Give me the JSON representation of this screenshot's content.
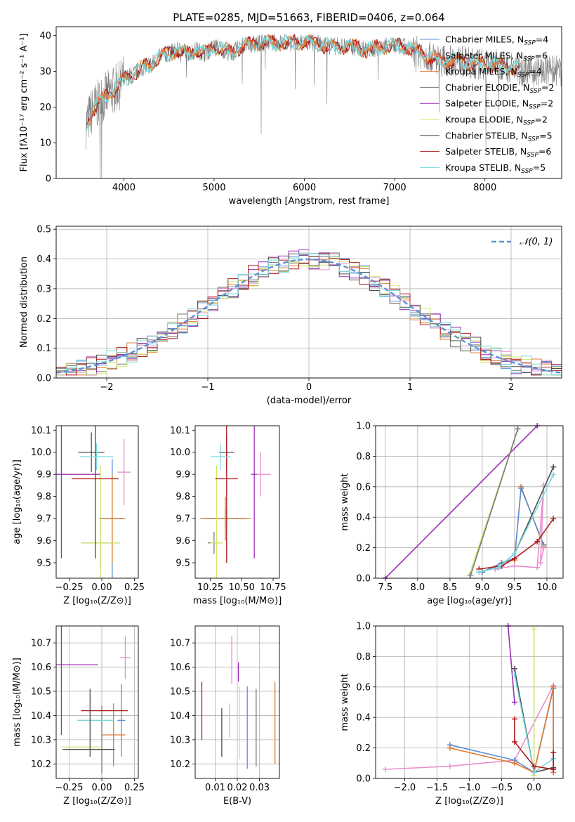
{
  "title": "PLATE=0285, MJD=51663, FIBERID=0406, z=0.064",
  "colors": {
    "grey_spectrum": "#808080",
    "chabrier_miles": "#5b8fd6",
    "salpeter_miles": "#e88fcf",
    "kroupa_miles": "#e07b2e",
    "chabrier_elodie": "#7a7a7a",
    "salpeter_elodie": "#9b2fb8",
    "kroupa_elodie": "#cde86b",
    "chabrier_stelib": "#4d4d4d",
    "salpeter_stelib": "#b01c1c",
    "kroupa_stelib": "#7ad9e0",
    "normal": "#5b8fd6"
  },
  "chart_data": [
    {
      "id": "spectrum",
      "type": "line",
      "xlabel": "wavelength [Angstrom, rest frame]",
      "ylabel": "Flux [fλ10⁻¹⁷ erg cm⁻² s⁻¹ A⁻¹]",
      "xlim": [
        3250,
        8850
      ],
      "ylim": [
        0,
        42.5
      ],
      "xticks": [
        "4000",
        "5000",
        "6000",
        "7000",
        "8000"
      ],
      "yticks": [
        "0",
        "10",
        "20",
        "30",
        "40"
      ],
      "legend_position": "top-right",
      "legend": [
        {
          "label": "Chabrier MILES, N",
          "sub": "SSP",
          "eq": "=4",
          "color_key": "chabrier_miles"
        },
        {
          "label": "Salpeter MILES, N",
          "sub": "SSP",
          "eq": "=6",
          "color_key": "salpeter_miles"
        },
        {
          "label": "Kroupa MILES, N",
          "sub": "SSP",
          "eq": "=4",
          "color_key": "kroupa_miles"
        },
        {
          "label": "Chabrier ELODIE, N",
          "sub": "SSP",
          "eq": "=2",
          "color_key": "chabrier_elodie"
        },
        {
          "label": "Salpeter ELODIE, N",
          "sub": "SSP",
          "eq": "=2",
          "color_key": "salpeter_elodie"
        },
        {
          "label": "Kroupa ELODIE, N",
          "sub": "SSP",
          "eq": "=2",
          "color_key": "kroupa_elodie"
        },
        {
          "label": "Chabrier STELIB, N",
          "sub": "SSP",
          "eq": "=5",
          "color_key": "chabrier_stelib"
        },
        {
          "label": "Salpeter STELIB, N",
          "sub": "SSP",
          "eq": "=6",
          "color_key": "salpeter_stelib"
        },
        {
          "label": "Kroupa STELIB, N",
          "sub": "SSP",
          "eq": "=5",
          "color_key": "kroupa_stelib"
        }
      ],
      "continuum_model": {
        "x": [
          3580,
          3650,
          3750,
          3850,
          3950,
          4000,
          4100,
          4200,
          4300,
          4400,
          4500,
          4600,
          4700,
          4800,
          4900,
          5000,
          5100,
          5200,
          5300,
          5500,
          5700,
          5900,
          6100,
          6300,
          6500,
          6700,
          6900,
          7100,
          7300,
          7500,
          7700,
          7900,
          8100,
          8300,
          8500,
          8700,
          8850
        ],
        "y": [
          15,
          19,
          22,
          24,
          26,
          28,
          29,
          31,
          32,
          34,
          35,
          36,
          35,
          36,
          35,
          37,
          36,
          35,
          37,
          38,
          38,
          38,
          38,
          37,
          37,
          36,
          37,
          37,
          35,
          33,
          33,
          32,
          32,
          31,
          30,
          30,
          30
        ]
      }
    },
    {
      "id": "residuals",
      "type": "histogram",
      "xlabel": "(data-model)/error",
      "ylabel": "Normed distribution",
      "xlim": [
        -2.5,
        2.5
      ],
      "ylim": [
        0,
        0.51
      ],
      "xticks": [
        "−2",
        "−1",
        "0",
        "1",
        "2"
      ],
      "yticks": [
        "0.0",
        "0.1",
        "0.2",
        "0.3",
        "0.4",
        "0.5"
      ],
      "grid": true,
      "legend_position": "top-right",
      "legend_label": "𝒩(0, 1)",
      "bin_width": 0.1
    },
    {
      "id": "age_vs_Z",
      "type": "errorbar",
      "xlabel": "Z [log₁₀(Z/Z⊙)]",
      "ylabel": "age  [log₁₀(age/yr)]",
      "xlim": [
        -0.35,
        0.28
      ],
      "ylim": [
        9.43,
        10.12
      ],
      "xticks": [
        "−0.25",
        "0.00",
        "0.25"
      ],
      "xtick_values": [
        -0.25,
        0,
        0.25
      ],
      "yticks": [
        "9.5",
        "9.6",
        "9.7",
        "9.8",
        "9.9",
        "10.0",
        "10.1"
      ],
      "ytick_values": [
        9.5,
        9.6,
        9.7,
        9.8,
        9.9,
        10.0,
        10.1
      ],
      "points": [
        {
          "s": "chabrier_miles",
          "x": 0.08,
          "xe": 0.08,
          "y": 9.7,
          "ye": 0.27
        },
        {
          "s": "salpeter_miles",
          "x": 0.17,
          "xe": 0.05,
          "y": 9.91,
          "ye": 0.15
        },
        {
          "s": "kroupa_miles",
          "x": 0.08,
          "xe": 0.1,
          "y": 9.7,
          "ye": 0.2
        },
        {
          "s": "chabrier_elodie",
          "x": -0.01,
          "xe": 0.15,
          "y": 9.59,
          "ye": 0.12
        },
        {
          "s": "salpeter_elodie",
          "x": -0.31,
          "xe": 0.3,
          "y": 9.9,
          "ye": 0.38
        },
        {
          "s": "kroupa_elodie",
          "x": -0.01,
          "xe": 0.15,
          "y": 9.59,
          "ye": 0.35
        },
        {
          "s": "chabrier_stelib",
          "x": -0.08,
          "xe": 0.1,
          "y": 10.0,
          "ye": 0.09
        },
        {
          "s": "salpeter_stelib",
          "x": -0.05,
          "xe": 0.18,
          "y": 9.88,
          "ye": 0.36
        },
        {
          "s": "kroupa_stelib",
          "x": -0.04,
          "xe": 0.13,
          "y": 9.98,
          "ye": 0.06
        }
      ]
    },
    {
      "id": "age_vs_mass",
      "type": "errorbar",
      "xlabel": "mass [log₁₀(M/M⊙)]",
      "ylabel": "",
      "xlim": [
        10.13,
        10.8
      ],
      "ylim": [
        9.43,
        10.12
      ],
      "xticks": [
        "10.25",
        "10.50",
        "10.75"
      ],
      "xtick_values": [
        10.25,
        10.5,
        10.75
      ],
      "yticks": [
        "9.5",
        "9.6",
        "9.7",
        "9.8",
        "9.9",
        "10.0",
        "10.1"
      ],
      "ytick_values": [
        9.5,
        9.6,
        9.7,
        9.8,
        9.9,
        10.0,
        10.1
      ],
      "points": [
        {
          "s": "chabrier_miles",
          "x": 10.37,
          "xe": 0.16,
          "y": 9.7,
          "ye": 0.05
        },
        {
          "s": "salpeter_miles",
          "x": 10.65,
          "xe": 0.08,
          "y": 9.9,
          "ye": 0.1
        },
        {
          "s": "kroupa_miles",
          "x": 10.37,
          "xe": 0.2,
          "y": 9.7,
          "ye": 0.1
        },
        {
          "s": "chabrier_elodie",
          "x": 10.28,
          "xe": 0.05,
          "y": 9.59,
          "ye": 0.05
        },
        {
          "s": "salpeter_elodie",
          "x": 10.6,
          "xe": 0.02,
          "y": 9.9,
          "ye": 0.38
        },
        {
          "s": "kroupa_elodie",
          "x": 10.3,
          "xe": 0.05,
          "y": 9.59,
          "ye": 0.35
        },
        {
          "s": "chabrier_stelib",
          "x": 10.38,
          "xe": 0.06,
          "y": 10.0,
          "ye": 0.08
        },
        {
          "s": "salpeter_stelib",
          "x": 10.38,
          "xe": 0.09,
          "y": 9.88,
          "ye": 0.38
        },
        {
          "s": "kroupa_stelib",
          "x": 10.33,
          "xe": 0.08,
          "y": 9.98,
          "ye": 0.06
        }
      ]
    },
    {
      "id": "mass_weight_vs_age",
      "type": "line",
      "xlabel": "age  [log₁₀(age/yr)]",
      "ylabel": "mass weight",
      "xlim": [
        7.35,
        10.25
      ],
      "ylim": [
        0,
        1.0
      ],
      "xticks": [
        "7.5",
        "8.0",
        "8.5",
        "9.0",
        "9.5",
        "10.0"
      ],
      "xtick_values": [
        7.5,
        8.0,
        8.5,
        9.0,
        9.5,
        10.0
      ],
      "yticks": [
        "0.0",
        "0.2",
        "0.4",
        "0.6",
        "0.8",
        "1.0"
      ],
      "ytick_values": [
        0,
        0.2,
        0.4,
        0.6,
        0.8,
        1.0
      ],
      "grid": true,
      "series": [
        {
          "s": "salpeter_elodie",
          "x": [
            7.5,
            9.85
          ],
          "y": [
            0.0,
            1.0
          ]
        },
        {
          "s": "kroupa_elodie",
          "x": [
            8.8,
            9.55
          ],
          "y": [
            0.02,
            0.98
          ]
        },
        {
          "s": "chabrier_elodie",
          "x": [
            8.82,
            9.55
          ],
          "y": [
            0.02,
            0.98
          ]
        },
        {
          "s": "kroupa_miles",
          "x": [
            9.0,
            9.3,
            9.5,
            9.6,
            9.95
          ],
          "y": [
            0.04,
            0.1,
            0.12,
            0.6,
            0.21
          ]
        },
        {
          "s": "chabrier_miles",
          "x": [
            9.0,
            9.3,
            9.5,
            9.6,
            9.95
          ],
          "y": [
            0.04,
            0.1,
            0.13,
            0.59,
            0.22
          ]
        },
        {
          "s": "salpeter_miles",
          "x": [
            9.2,
            9.5,
            9.85,
            9.95,
            9.9,
            9.95
          ],
          "y": [
            0.06,
            0.08,
            0.07,
            0.61,
            0.1,
            0.2
          ]
        },
        {
          "s": "salpeter_stelib",
          "x": [
            8.95,
            9.3,
            9.5,
            9.85,
            10.1
          ],
          "y": [
            0.06,
            0.08,
            0.13,
            0.24,
            0.39
          ]
        },
        {
          "s": "chabrier_stelib",
          "x": [
            8.95,
            9.25,
            9.5,
            10.1
          ],
          "y": [
            0.04,
            0.07,
            0.16,
            0.73
          ]
        },
        {
          "s": "kroupa_stelib",
          "x": [
            8.95,
            9.25,
            9.5,
            10.1
          ],
          "y": [
            0.04,
            0.07,
            0.16,
            0.68
          ]
        }
      ]
    },
    {
      "id": "mass_vs_Z",
      "type": "errorbar",
      "xlabel": "Z [log₁₀(Z/Z⊙)]",
      "ylabel": "mass [log₁₀(M/M⊙)]",
      "xlim": [
        -0.35,
        0.28
      ],
      "ylim": [
        10.14,
        10.77
      ],
      "xticks": [
        "−0.25",
        "0.00",
        "0.25"
      ],
      "xtick_values": [
        -0.25,
        0,
        0.25
      ],
      "yticks": [
        "10.2",
        "10.3",
        "10.4",
        "10.5",
        "10.6",
        "10.7"
      ],
      "ytick_values": [
        10.2,
        10.3,
        10.4,
        10.5,
        10.6,
        10.7
      ],
      "grid": true,
      "points": [
        {
          "s": "chabrier_miles",
          "x": 0.15,
          "xe": 0.03,
          "y": 10.38,
          "ye": 0.15
        },
        {
          "s": "salpeter_miles",
          "x": 0.18,
          "xe": 0.04,
          "y": 10.64,
          "ye": 0.09
        },
        {
          "s": "kroupa_miles",
          "x": 0.09,
          "xe": 0.09,
          "y": 10.32,
          "ye": 0.13
        },
        {
          "s": "chabrier_elodie",
          "x": 0.0,
          "xe": 0.0,
          "y": 10.3,
          "ye": 0.14
        },
        {
          "s": "salpeter_elodie",
          "x": -0.31,
          "xe": 0.28,
          "y": 10.61,
          "ye": 0.29
        },
        {
          "s": "kroupa_elodie",
          "x": -0.16,
          "xe": 0.15,
          "y": 10.27,
          "ye": 0.0
        },
        {
          "s": "chabrier_stelib",
          "x": -0.1,
          "xe": 0.2,
          "y": 10.26,
          "ye": 0.0
        },
        {
          "s": "salpeter_stelib",
          "x": 0.02,
          "xe": 0.18,
          "y": 10.42,
          "ye": 0.0
        },
        {
          "s": "kroupa_stelib",
          "x": -0.05,
          "xe": 0.14,
          "y": 10.38,
          "ye": 0.0
        },
        {
          "s": "chabrier_stelib",
          "x": -0.09,
          "xe": 0.0,
          "y": 10.37,
          "ye": 0.14
        }
      ]
    },
    {
      "id": "mass_vs_ebv",
      "type": "errorbar",
      "xlabel": "E(B-V)",
      "ylabel": "",
      "xlim": [
        0.001,
        0.039
      ],
      "ylim": [
        10.14,
        10.77
      ],
      "xticks": [
        "0.01",
        "0.02",
        "0.03"
      ],
      "xtick_values": [
        0.01,
        0.02,
        0.03
      ],
      "yticks": [
        "10.2",
        "10.3",
        "10.4",
        "10.5",
        "10.6",
        "10.7"
      ],
      "ytick_values": [
        10.2,
        10.3,
        10.4,
        10.5,
        10.6,
        10.7
      ],
      "grid": true,
      "points": [
        {
          "s": "salpeter_stelib",
          "x": 0.004,
          "xe": 0.0,
          "y": 10.42,
          "ye": 0.12
        },
        {
          "s": "chabrier_stelib",
          "x": 0.013,
          "xe": 0.0,
          "y": 10.33,
          "ye": 0.1
        },
        {
          "s": "salpeter_miles",
          "x": 0.0175,
          "xe": 0.0,
          "y": 10.63,
          "ye": 0.1
        },
        {
          "s": "kroupa_stelib",
          "x": 0.0165,
          "xe": 0.0,
          "y": 10.38,
          "ye": 0.07
        },
        {
          "s": "salpeter_elodie",
          "x": 0.0205,
          "xe": 0.0,
          "y": 10.58,
          "ye": 0.04
        },
        {
          "s": "kroupa_elodie",
          "x": 0.021,
          "xe": 0.0,
          "y": 10.37,
          "ye": 0.15
        },
        {
          "s": "chabrier_miles",
          "x": 0.0245,
          "xe": 0.0,
          "y": 10.35,
          "ye": 0.17
        },
        {
          "s": "chabrier_elodie",
          "x": 0.0285,
          "xe": 0.0,
          "y": 10.35,
          "ye": 0.16
        },
        {
          "s": "kroupa_miles",
          "x": 0.037,
          "xe": 0.0,
          "y": 10.37,
          "ye": 0.17
        }
      ]
    },
    {
      "id": "mass_weight_vs_Z",
      "type": "line",
      "xlabel": "Z [log₁₀(Z/Z⊙)]",
      "ylabel": "mass weight",
      "xlim": [
        -2.45,
        0.45
      ],
      "ylim": [
        0,
        1.0
      ],
      "xticks": [
        "−2.0",
        "−1.5",
        "−1.0",
        "−0.5",
        "0.0"
      ],
      "xtick_values": [
        -2.0,
        -1.5,
        -1.0,
        -0.5,
        0.0
      ],
      "yticks": [
        "0.0",
        "0.2",
        "0.4",
        "0.6",
        "0.8",
        "1.0"
      ],
      "ytick_values": [
        0,
        0.2,
        0.4,
        0.6,
        0.8,
        1.0
      ],
      "grid": true,
      "series": [
        {
          "s": "salpeter_miles",
          "x": [
            -2.3,
            -1.3,
            -0.3,
            0.3,
            0.3
          ],
          "y": [
            0.06,
            0.08,
            0.12,
            0.61,
            0.06
          ]
        },
        {
          "s": "chabrier_miles",
          "x": [
            -1.3,
            -0.3,
            0.0,
            0.3,
            0.3
          ],
          "y": [
            0.22,
            0.12,
            0.04,
            0.59,
            0.04
          ]
        },
        {
          "s": "kroupa_miles",
          "x": [
            -1.3,
            -0.3,
            0.0,
            0.3,
            0.3
          ],
          "y": [
            0.2,
            0.1,
            0.04,
            0.6,
            0.04
          ]
        },
        {
          "s": "salpeter_elodie",
          "x": [
            -0.4,
            -0.3
          ],
          "y": [
            1.0,
            0.5
          ]
        },
        {
          "s": "kroupa_elodie",
          "x": [
            0.0,
            0.0
          ],
          "y": [
            0.02,
            0.98
          ]
        },
        {
          "s": "chabrier_stelib",
          "x": [
            -0.3,
            0.0,
            0.3
          ],
          "y": [
            0.72,
            0.04,
            0.07
          ]
        },
        {
          "s": "kroupa_stelib",
          "x": [
            -0.3,
            0.0,
            0.3
          ],
          "y": [
            0.68,
            0.04,
            0.13
          ]
        },
        {
          "s": "salpeter_stelib",
          "x": [
            -0.3,
            -0.3,
            0.0,
            0.3,
            0.3
          ],
          "y": [
            0.39,
            0.24,
            0.08,
            0.06,
            0.17
          ]
        }
      ]
    }
  ]
}
